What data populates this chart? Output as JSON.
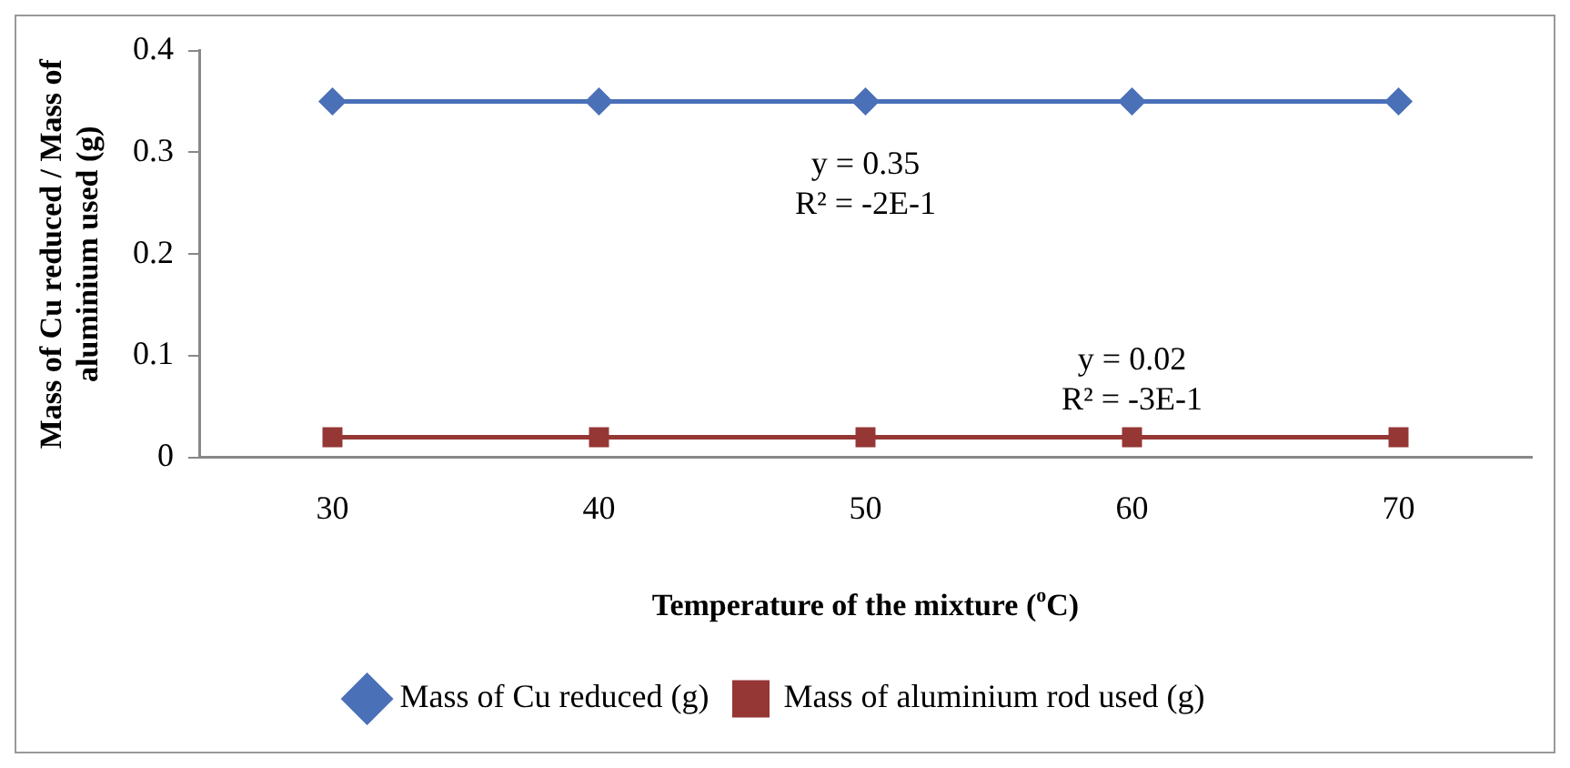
{
  "chart_data": {
    "type": "line",
    "xlabel": "Temperature of the mixture ($^{o}$C)",
    "ylabel": "Mass of Cu reduced / Mass of aluminium used (g)",
    "categories": [
      "30",
      "40",
      "50",
      "60",
      "70"
    ],
    "series": [
      {
        "name": "Mass of Cu reduced (g)",
        "color": "#4a70b8",
        "marker": "diamond",
        "values": [
          0.35,
          0.35,
          0.35,
          0.35,
          0.35
        ]
      },
      {
        "name": "Mass of aluminium rod used (g)",
        "color": "#953735",
        "marker": "square",
        "values": [
          0.02,
          0.02,
          0.02,
          0.02,
          0.02
        ]
      }
    ],
    "annotations": [
      {
        "text": "y = 0.35\nR² = -2E-1",
        "x": "50",
        "y": 0.35
      },
      {
        "text": "y = 0.02\nR² = -3E-1",
        "x": "60",
        "y": 0.02
      }
    ],
    "ylim": [
      0,
      0.4
    ],
    "yticks": [
      0,
      0.1,
      0.2,
      0.3,
      0.4
    ],
    "grid": false,
    "legend": "bottom",
    "line_style": "solid"
  }
}
